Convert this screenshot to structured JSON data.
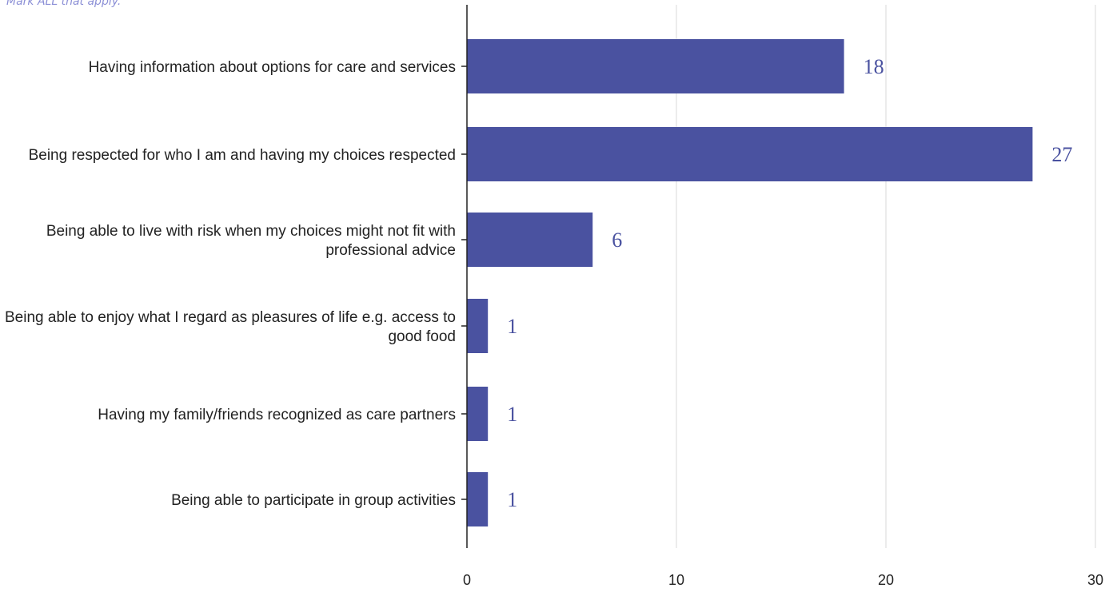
{
  "instruction": "Mark ALL that apply.",
  "colors": {
    "bar": "#4a52a0",
    "data_label": "#4a52a0",
    "grid": "#d9d9d9",
    "axis": "#222222",
    "instruction": "#8b8fd6"
  },
  "chart_data": {
    "type": "bar",
    "orientation": "horizontal",
    "categories": [
      [
        "Having information about options for care and services"
      ],
      [
        "Being respected for who I am and having my choices respected"
      ],
      [
        "Being able to live with risk when my choices might not fit with",
        "professional advice"
      ],
      [
        "Being able to enjoy what I regard as pleasures of life e.g. access to",
        "good food"
      ],
      [
        "Having my family/friends recognized as care partners"
      ],
      [
        "Being able to participate in group activities"
      ]
    ],
    "values": [
      18,
      27,
      6,
      1,
      1,
      1
    ],
    "xlim": [
      0,
      30
    ],
    "xticks": [
      0,
      10,
      20,
      30
    ],
    "grid": true,
    "legend": "none",
    "title": "",
    "xlabel": "",
    "ylabel": ""
  }
}
